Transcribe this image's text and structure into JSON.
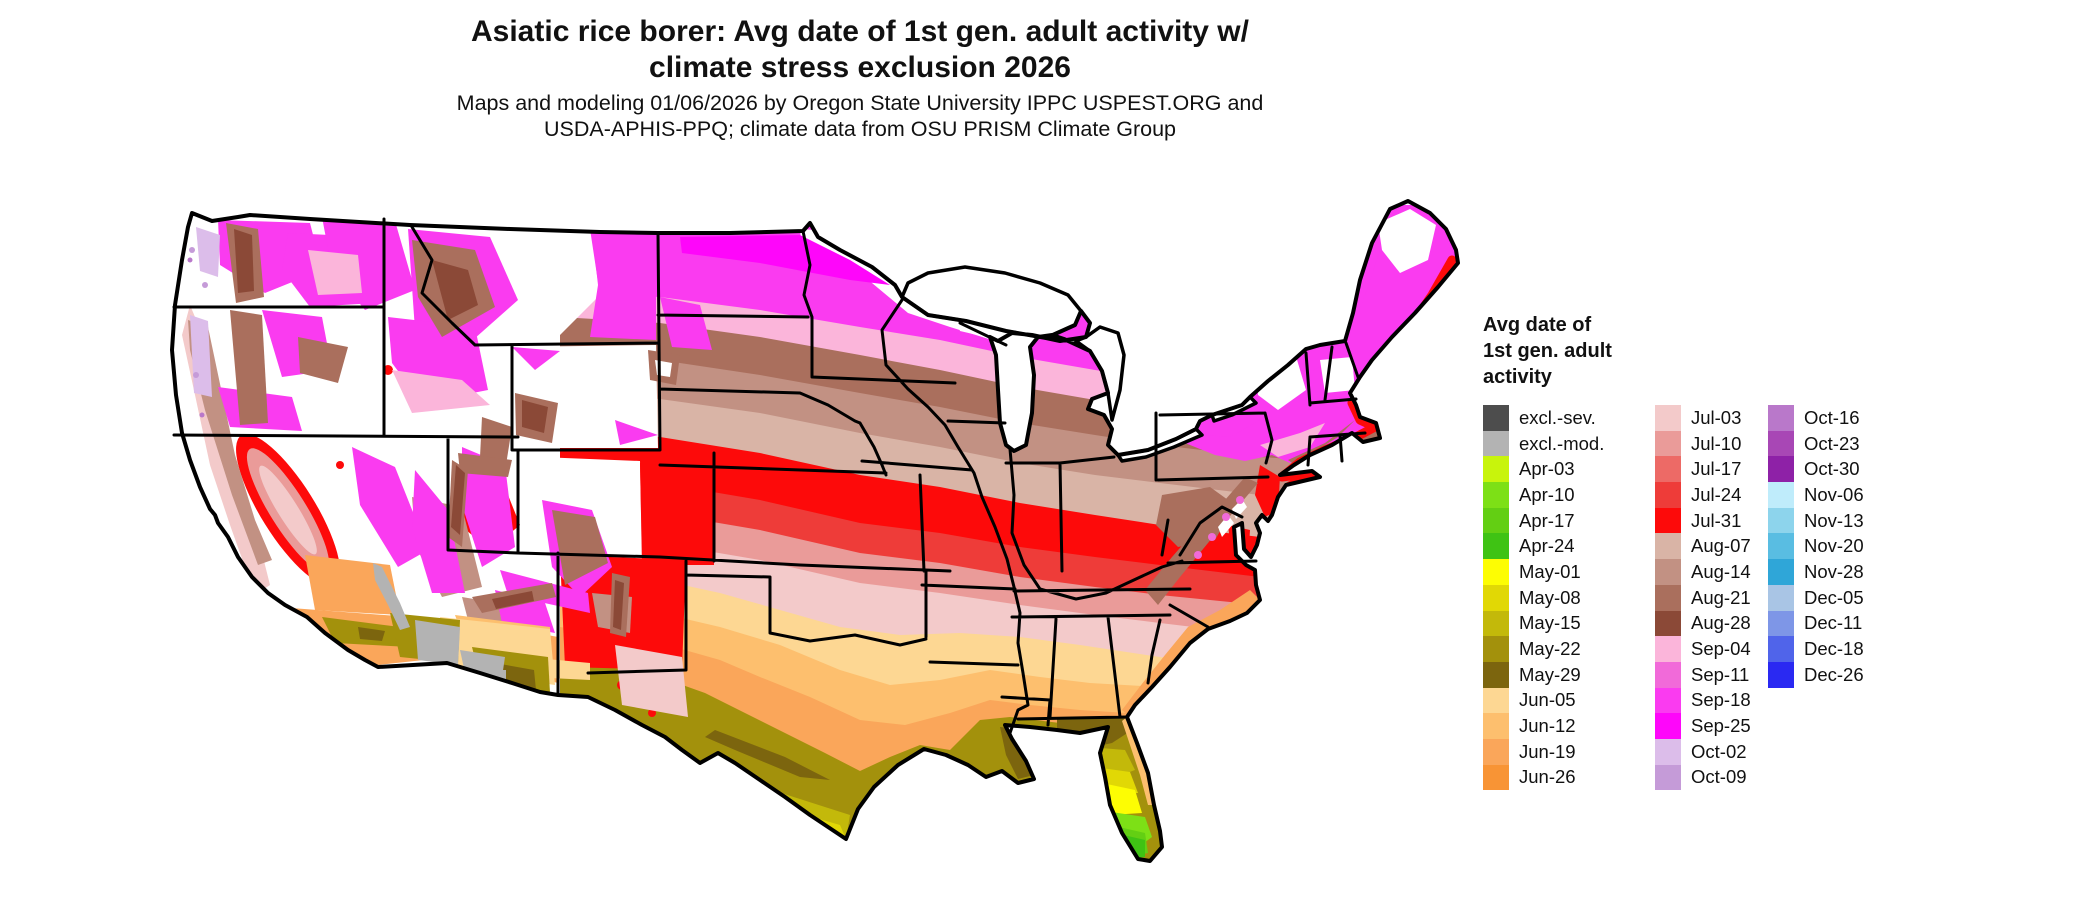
{
  "header": {
    "title_line1": "Asiatic rice borer: Avg date of 1st gen. adult activity w/",
    "title_line2": "climate stress exclusion 2026",
    "subtitle_line1": "Maps and modeling 01/06/2026 by Oregon State University IPPC USPEST.ORG and",
    "subtitle_line2": "USDA-APHIS-PPQ; climate data from OSU PRISM Climate Group"
  },
  "legend": {
    "title": "Avg date of\n1st gen. adult\nactivity",
    "columns": [
      {
        "items": [
          {
            "label": "excl.-sev.",
            "key": "excl_sev"
          },
          {
            "label": "excl.-mod.",
            "key": "excl_mod"
          },
          {
            "label": "Apr-03",
            "key": "apr03"
          },
          {
            "label": "Apr-10",
            "key": "apr10"
          },
          {
            "label": "Apr-17",
            "key": "apr17"
          },
          {
            "label": "Apr-24",
            "key": "apr24"
          },
          {
            "label": "May-01",
            "key": "may01"
          },
          {
            "label": "May-08",
            "key": "may08"
          },
          {
            "label": "May-15",
            "key": "may15"
          },
          {
            "label": "May-22",
            "key": "may22"
          },
          {
            "label": "May-29",
            "key": "may29"
          },
          {
            "label": "Jun-05",
            "key": "jun05"
          },
          {
            "label": "Jun-12",
            "key": "jun12"
          },
          {
            "label": "Jun-19",
            "key": "jun19"
          },
          {
            "label": "Jun-26",
            "key": "jun26"
          }
        ]
      },
      {
        "items": [
          {
            "label": "Jul-03",
            "key": "jul03"
          },
          {
            "label": "Jul-10",
            "key": "jul10"
          },
          {
            "label": "Jul-17",
            "key": "jul17"
          },
          {
            "label": "Jul-24",
            "key": "jul24"
          },
          {
            "label": "Jul-31",
            "key": "jul31"
          },
          {
            "label": "Aug-07",
            "key": "aug07"
          },
          {
            "label": "Aug-14",
            "key": "aug14"
          },
          {
            "label": "Aug-21",
            "key": "aug21"
          },
          {
            "label": "Aug-28",
            "key": "aug28"
          },
          {
            "label": "Sep-04",
            "key": "sep04"
          },
          {
            "label": "Sep-11",
            "key": "sep11"
          },
          {
            "label": "Sep-18",
            "key": "sep18"
          },
          {
            "label": "Sep-25",
            "key": "sep25"
          },
          {
            "label": "Oct-02",
            "key": "oct02"
          },
          {
            "label": "Oct-09",
            "key": "oct09"
          }
        ]
      },
      {
        "items": [
          {
            "label": "Oct-16",
            "key": "oct16"
          },
          {
            "label": "Oct-23",
            "key": "oct23"
          },
          {
            "label": "Oct-30",
            "key": "oct30"
          },
          {
            "label": "Nov-06",
            "key": "nov06"
          },
          {
            "label": "Nov-13",
            "key": "nov13"
          },
          {
            "label": "Nov-20",
            "key": "nov20"
          },
          {
            "label": "Nov-28",
            "key": "nov28"
          },
          {
            "label": "Dec-05",
            "key": "dec05"
          },
          {
            "label": "Dec-11",
            "key": "dec11"
          },
          {
            "label": "Dec-18",
            "key": "dec18"
          },
          {
            "label": "Dec-26",
            "key": "dec26"
          }
        ]
      }
    ]
  },
  "palette": {
    "white": "#ffffff",
    "excl_sev": "#4d4d4d",
    "excl_mod": "#b3b3b3",
    "apr03": "#c8f40c",
    "apr10": "#7de016",
    "apr17": "#63cf13",
    "apr24": "#3fc314",
    "may01": "#fdfd03",
    "may08": "#e1d805",
    "may15": "#c3b90a",
    "may22": "#a3910c",
    "may29": "#7c650e",
    "jun05": "#fdd793",
    "jun12": "#fdbf6e",
    "jun19": "#faa65a",
    "jun26": "#f89435",
    "jul03": "#f3caca",
    "jul10": "#ea9b99",
    "jul17": "#ed6a66",
    "jul24": "#ee3c39",
    "jul31": "#fd0a0a",
    "aug07": "#d9b4a6",
    "aug14": "#c29183",
    "aug21": "#aa6f5d",
    "aug28": "#8b4937",
    "sep04": "#fbb5da",
    "sep11": "#f16ad9",
    "sep18": "#fa3bf0",
    "sep25": "#fe06fa",
    "oct02": "#dcbdea",
    "oct09": "#c59bd8",
    "oct16": "#b978ca",
    "oct23": "#a847b5",
    "oct30": "#8e21a7",
    "nov06": "#bfecfb",
    "nov13": "#8dd4ec",
    "nov20": "#59bde2",
    "nov28": "#2fa6d8",
    "dec05": "#a9c5e5",
    "dec11": "#7e96e7",
    "dec18": "#5064ea",
    "dec26": "#2a29f2",
    "outline": "#000000"
  }
}
